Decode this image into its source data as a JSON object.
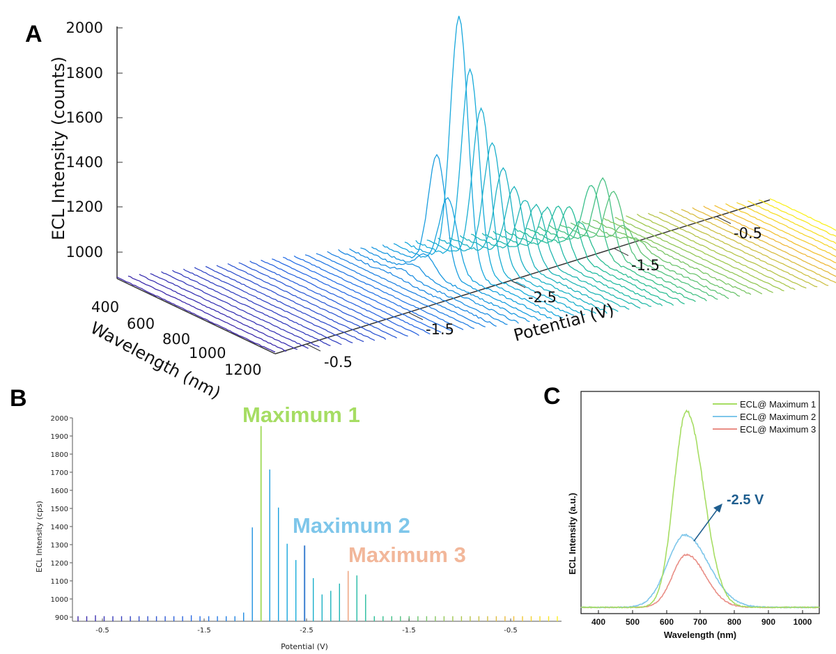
{
  "colors": {
    "green": "#a6dd63",
    "blue": "#7ec6ea",
    "red": "#e98e86",
    "salmon": "#f2b79a",
    "arrow": "#1f5e8f",
    "axis": "#333333"
  },
  "panels": {
    "a": "A",
    "b": "B",
    "c": "C"
  },
  "chart_data": [
    {
      "id": "A",
      "type": "line",
      "title": "",
      "zlabel": "ECL Intensity (counts)",
      "zticks": [
        "1000",
        "1200",
        "1400",
        "1600",
        "1800",
        "2000"
      ],
      "zlim": [
        880,
        2000
      ],
      "wavelength_label": "Wavelength (nm)",
      "wavelength_ticks": [
        "400",
        "600",
        "800",
        "1000",
        "1200"
      ],
      "potential_label": "Potential (V)",
      "potential_ticks": [
        "-0.5",
        "-1.5",
        "-2.5",
        "-1.5",
        "-0.5"
      ],
      "peak_heights": [
        0,
        0,
        0,
        0,
        0,
        0,
        0,
        0,
        0,
        0,
        0,
        0,
        0,
        0,
        0,
        0,
        0,
        0,
        0,
        0,
        10,
        20,
        40,
        80,
        515,
        320,
        1120,
        880,
        700,
        540,
        420,
        330,
        270,
        240,
        220,
        220,
        210,
        140,
        300,
        320,
        260,
        100,
        40,
        10,
        0,
        0,
        0,
        0,
        0,
        0,
        0,
        0,
        0,
        0,
        0,
        0,
        0,
        0,
        0,
        0
      ]
    },
    {
      "id": "B",
      "type": "bar",
      "xlabel": "Potential (V)",
      "ylabel": "ECL Intensity (cps)",
      "ylim": [
        890,
        2000
      ],
      "yticks": [
        "900",
        "1000",
        "1100",
        "1200",
        "1300",
        "1400",
        "1500",
        "1600",
        "1700",
        "1800",
        "1900",
        "2000"
      ],
      "xticks": [
        "-0.5",
        "-1.5",
        "-2.5",
        "-1.5",
        "-0.5"
      ],
      "values": [
        905,
        905,
        910,
        905,
        905,
        905,
        905,
        905,
        905,
        905,
        905,
        905,
        905,
        910,
        905,
        905,
        905,
        905,
        905,
        925,
        1395,
        1955,
        1715,
        1505,
        1305,
        1215,
        1295,
        1115,
        1025,
        1045,
        1085,
        1155,
        1130,
        1025,
        905,
        905,
        905,
        905,
        905,
        905,
        905,
        905,
        905,
        905,
        905,
        905,
        905,
        905,
        905,
        905,
        905,
        905,
        905,
        905,
        905,
        905
      ],
      "annotations": [
        {
          "label": "Maximum 1",
          "color": "#a6dd63"
        },
        {
          "label": "Maximum 2",
          "color": "#7ec6ea"
        },
        {
          "label": "Maximum 3",
          "color": "#f2b79a"
        }
      ]
    },
    {
      "id": "C",
      "type": "line",
      "xlabel": "Wavelength (nm)",
      "ylabel": "ECL Intensity (a.u.)",
      "xlim": [
        350,
        1050
      ],
      "xticks": [
        "400",
        "500",
        "600",
        "700",
        "800",
        "900",
        "1000"
      ],
      "series": [
        {
          "name": "ECL@ Maximum 1",
          "color": "#a6dd63",
          "peak": 660,
          "height": 1.0,
          "sigma": 62
        },
        {
          "name": "ECL@ Maximum 2",
          "color": "#7ec6ea",
          "peak": 655,
          "height": 0.37,
          "sigma": 85
        },
        {
          "name": "ECL@ Maximum 3",
          "color": "#e98e86",
          "peak": 660,
          "height": 0.27,
          "sigma": 68
        }
      ],
      "annotation": "-2.5 V"
    }
  ]
}
